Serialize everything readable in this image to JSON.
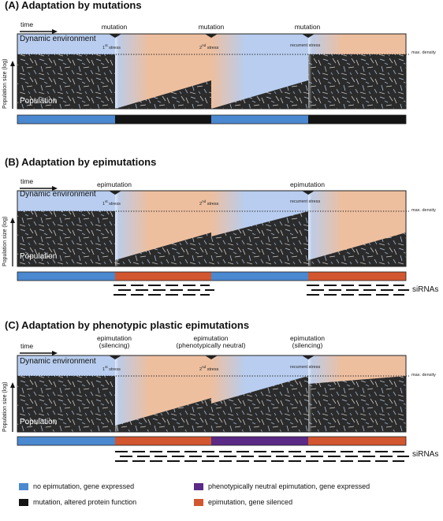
{
  "colors": {
    "no_epimutation": "#4a88d0",
    "mutation": "#141414",
    "neutral": "#5a2a86",
    "silenced": "#d2562f",
    "env_blue": "#b8cdef",
    "env_orange": "#edbf9f"
  },
  "common": {
    "time": "time",
    "dynamic_environment": "Dynamic environment",
    "population": "Population",
    "y_axis": "Population size (log)",
    "max_density": "max. density",
    "stress1_num": "1",
    "stress1_sup": "st",
    "stress1_word": "stress",
    "stress2_num": "2",
    "stress2_sup": "nd",
    "stress2_word": "stress",
    "recurrent_stress": "recurrent stress",
    "sirnas": "siRNAs"
  },
  "panels": [
    {
      "title": "(A) Adaptation by mutations",
      "events": [
        "mutation",
        "mutation",
        "mutation"
      ],
      "bar": [
        "no epimutation",
        "mutation",
        "no epimutation",
        "mutation"
      ]
    },
    {
      "title": "(B) Adaptation by epimutations",
      "events": [
        "epimutation",
        "epimutation"
      ],
      "bar": [
        "no epimutation",
        "silenced",
        "no epimutation",
        "silenced"
      ]
    },
    {
      "title": "(C) Adaptation by phenotypic plastic epimutations",
      "events": [
        "epimutation\n(silencing)",
        "epimutation\n(phenotypically neutral)",
        "epimutation\n(silencing)"
      ],
      "bar": [
        "no epimutation",
        "silenced",
        "neutral",
        "silenced"
      ]
    }
  ],
  "legend": {
    "no_epimutation": "no epimutation, gene expressed",
    "mutation": "mutation, altered protein function",
    "neutral": "phenotypically neutral epimutation, gene expressed",
    "silenced": "epimutation, gene silenced"
  }
}
